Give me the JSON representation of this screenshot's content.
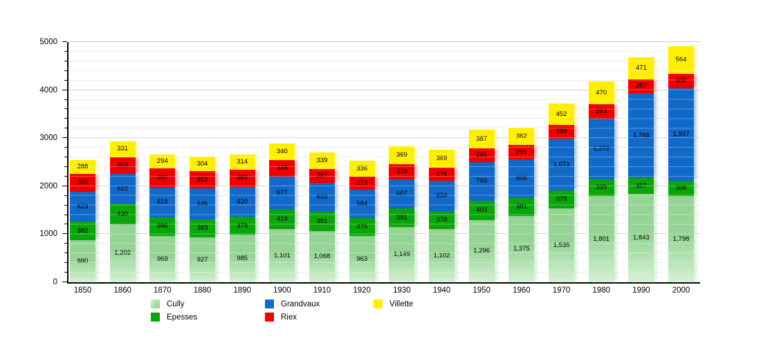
{
  "chart_data": {
    "type": "bar",
    "stacked": true,
    "categories": [
      "1850",
      "1860",
      "1870",
      "1880",
      "1890",
      "1900",
      "1910",
      "1920",
      "1930",
      "1940",
      "1950",
      "1960",
      "1970",
      "1980",
      "1990",
      "2000"
    ],
    "series": [
      {
        "name": "Cully",
        "color": "#95d495",
        "gradient_bottom": "#d4f0d4",
        "values": [
          880,
          1202,
          969,
          927,
          985,
          1101,
          1068,
          963,
          1149,
          1102,
          1296,
          1375,
          1535,
          1801,
          1843,
          1798
        ]
      },
      {
        "name": "Epesses",
        "color": "#0ba50b",
        "values": [
          382,
          430,
          386,
          383,
          379,
          419,
          391,
          375,
          391,
          378,
          403,
          381,
          378,
          339,
          327,
          308
        ]
      },
      {
        "name": "Grandvaux",
        "color": "#1169c9",
        "values": [
          623,
          622,
          618,
          646,
          620,
          677,
          610,
          584,
          607,
          634,
          799,
          808,
          1073,
          1272,
          1768,
          1937
        ]
      },
      {
        "name": "Riex",
        "color": "#ee0000",
        "values": [
          368,
          353,
          397,
          353,
          365,
          349,
          287,
          273,
          310,
          276,
          291,
          291,
          289,
          293,
          282,
          300
        ]
      },
      {
        "name": "Villette",
        "color": "#ffee00",
        "values": [
          288,
          331,
          294,
          304,
          314,
          340,
          339,
          336,
          369,
          369,
          387,
          362,
          452,
          470,
          471,
          564
        ]
      }
    ],
    "ylim": [
      0,
      5000
    ],
    "ytick_major_step": 1000,
    "ytick_minor_step": 200,
    "ytick_labels": [
      "0",
      "1000",
      "2000",
      "3000",
      "4000",
      "5000"
    ],
    "grid": true,
    "legend_position": "bottom",
    "legend_columns": [
      [
        "Cully",
        "Epesses"
      ],
      [
        "Grandvaux",
        "Riex"
      ],
      [
        "Villette"
      ]
    ],
    "colors": {
      "background": "#ffffff",
      "grid_minor": "#e7e7e7",
      "grid_major": "#c9c9c9",
      "axis": "#000000",
      "value_label": "#000000"
    }
  }
}
